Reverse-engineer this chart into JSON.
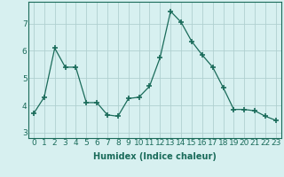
{
  "x": [
    0,
    1,
    2,
    3,
    4,
    5,
    6,
    7,
    8,
    9,
    10,
    11,
    12,
    13,
    14,
    15,
    16,
    17,
    18,
    19,
    20,
    21,
    22,
    23
  ],
  "y": [
    3.7,
    4.3,
    6.1,
    5.4,
    5.4,
    4.1,
    4.1,
    3.65,
    3.6,
    4.25,
    4.3,
    4.7,
    5.75,
    7.45,
    7.05,
    6.35,
    5.85,
    5.4,
    4.65,
    3.85,
    3.85,
    3.8,
    3.6,
    3.45
  ],
  "xlabel": "Humidex (Indice chaleur)",
  "ylim": [
    2.8,
    7.8
  ],
  "xlim": [
    -0.5,
    23.5
  ],
  "yticks": [
    3,
    4,
    5,
    6,
    7
  ],
  "xticks": [
    0,
    1,
    2,
    3,
    4,
    5,
    6,
    7,
    8,
    9,
    10,
    11,
    12,
    13,
    14,
    15,
    16,
    17,
    18,
    19,
    20,
    21,
    22,
    23
  ],
  "line_color": "#1a6b5a",
  "marker": "+",
  "marker_size": 4,
  "marker_lw": 1.2,
  "bg_color": "#d7f0f0",
  "grid_color": "#b0d0d0",
  "xlabel_fontsize": 7,
  "tick_fontsize": 6.5,
  "spine_color": "#1a6b5a"
}
